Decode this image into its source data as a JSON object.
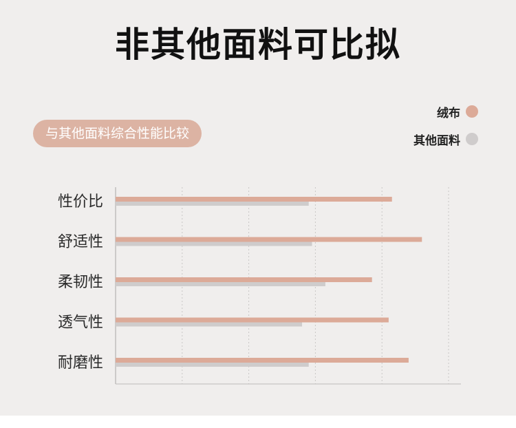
{
  "title": "非其他面料可比拟",
  "subtitle_pill": "与其他面料综合性能比较",
  "legend": [
    {
      "label": "绒布",
      "color": "#dcaa98"
    },
    {
      "label": "其他面料",
      "color": "#cfcccc"
    }
  ],
  "chart_data": {
    "type": "bar",
    "orientation": "horizontal",
    "categories": [
      "性价比",
      "舒适性",
      "柔韧性",
      "透气性",
      "耐磨性"
    ],
    "series": [
      {
        "name": "绒布",
        "values": [
          83,
          92,
          77,
          82,
          88
        ],
        "color": "#dcaa98"
      },
      {
        "name": "其他面料",
        "values": [
          58,
          59,
          63,
          56,
          58
        ],
        "color": "#cfcccc"
      }
    ],
    "xlim": [
      0,
      100
    ],
    "grid": true,
    "legend_position": "top-right"
  }
}
